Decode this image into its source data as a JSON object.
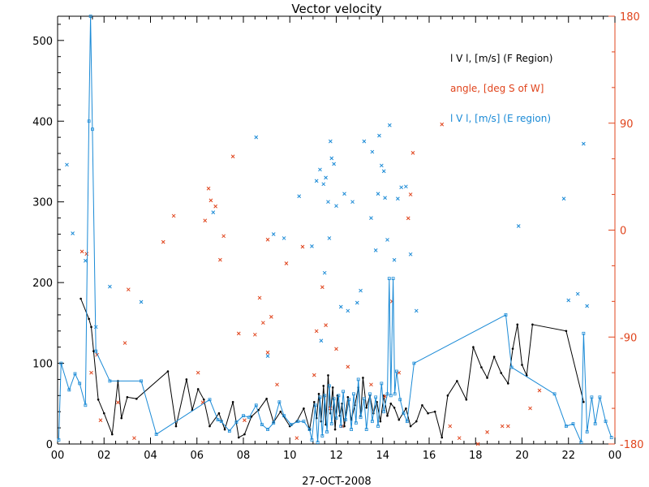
{
  "colors": {
    "axis": "#000000",
    "f_region": "#000000",
    "angle": "#e0441c",
    "e_region": "#1a8ad6",
    "right_axis": "#e0441c"
  },
  "chart_data": {
    "type": "line",
    "title": "Vector velocity",
    "xlabel": "27-OCT-2008",
    "ylabel": "",
    "xlim": [
      0,
      24
    ],
    "ylim": [
      0,
      530
    ],
    "y2lim": [
      -180,
      180
    ],
    "x_ticks": [
      "00",
      "02",
      "04",
      "06",
      "08",
      "10",
      "12",
      "14",
      "16",
      "18",
      "20",
      "22",
      "00"
    ],
    "x_tick_values": [
      0,
      2,
      4,
      6,
      8,
      10,
      12,
      14,
      16,
      18,
      20,
      22,
      24
    ],
    "y_ticks": [
      "0",
      "100",
      "200",
      "300",
      "400",
      "500"
    ],
    "y_tick_values": [
      0,
      100,
      200,
      300,
      400,
      500
    ],
    "y2_ticks": [
      "180",
      "90",
      "0",
      "-90",
      "-180"
    ],
    "y2_tick_values": [
      180,
      90,
      0,
      -90,
      -180
    ],
    "legend_position": "top-right",
    "grid": false,
    "series": [
      {
        "name": "l V l, [m/s] (F Region)",
        "color": "#000000",
        "style": "line-dot",
        "axis": "left",
        "points": [
          [
            1.0,
            180
          ],
          [
            1.35,
            155
          ],
          [
            1.45,
            145
          ],
          [
            1.55,
            115
          ],
          [
            1.75,
            55
          ],
          [
            2.0,
            38
          ],
          [
            2.35,
            12
          ],
          [
            2.6,
            78
          ],
          [
            2.75,
            32
          ],
          [
            3.0,
            58
          ],
          [
            3.4,
            56
          ],
          [
            4.75,
            90
          ],
          [
            5.1,
            22
          ],
          [
            5.55,
            80
          ],
          [
            5.8,
            42
          ],
          [
            6.05,
            68
          ],
          [
            6.3,
            55
          ],
          [
            6.55,
            22
          ],
          [
            6.95,
            38
          ],
          [
            7.2,
            18
          ],
          [
            7.55,
            52
          ],
          [
            7.8,
            8
          ],
          [
            8.05,
            12
          ],
          [
            8.35,
            34
          ],
          [
            8.65,
            42
          ],
          [
            9.0,
            56
          ],
          [
            9.3,
            27
          ],
          [
            9.6,
            40
          ],
          [
            10.0,
            22
          ],
          [
            10.3,
            28
          ],
          [
            10.6,
            44
          ],
          [
            10.85,
            18
          ],
          [
            11.05,
            52
          ],
          [
            11.15,
            32
          ],
          [
            11.25,
            62
          ],
          [
            11.35,
            28
          ],
          [
            11.45,
            72
          ],
          [
            11.55,
            24
          ],
          [
            11.65,
            85
          ],
          [
            11.75,
            38
          ],
          [
            11.85,
            70
          ],
          [
            11.95,
            18
          ],
          [
            12.05,
            60
          ],
          [
            12.15,
            35
          ],
          [
            12.25,
            50
          ],
          [
            12.35,
            22
          ],
          [
            12.5,
            58
          ],
          [
            12.65,
            30
          ],
          [
            12.8,
            48
          ],
          [
            12.95,
            70
          ],
          [
            13.05,
            35
          ],
          [
            13.15,
            82
          ],
          [
            13.3,
            45
          ],
          [
            13.45,
            60
          ],
          [
            13.6,
            38
          ],
          [
            13.75,
            52
          ],
          [
            13.9,
            28
          ],
          [
            14.05,
            60
          ],
          [
            14.2,
            35
          ],
          [
            14.35,
            50
          ],
          [
            14.5,
            45
          ],
          [
            14.7,
            30
          ],
          [
            15.0,
            44
          ],
          [
            15.2,
            22
          ],
          [
            15.45,
            28
          ],
          [
            15.7,
            48
          ],
          [
            15.95,
            38
          ],
          [
            16.25,
            40
          ],
          [
            16.55,
            8
          ],
          [
            16.8,
            60
          ],
          [
            17.2,
            78
          ],
          [
            17.6,
            55
          ],
          [
            17.9,
            120
          ],
          [
            18.25,
            95
          ],
          [
            18.5,
            82
          ],
          [
            18.8,
            108
          ],
          [
            19.1,
            88
          ],
          [
            19.4,
            75
          ],
          [
            19.6,
            118
          ],
          [
            19.8,
            148
          ],
          [
            20.0,
            98
          ],
          [
            20.2,
            85
          ],
          [
            20.45,
            148
          ],
          [
            21.9,
            140
          ],
          [
            22.65,
            52
          ]
        ]
      },
      {
        "name": "angle, [deg S of W]",
        "color": "#e0441c",
        "style": "cross",
        "axis": "right",
        "points": [
          [
            1.05,
            -18
          ],
          [
            1.25,
            -20
          ],
          [
            1.45,
            -120
          ],
          [
            1.7,
            -105
          ],
          [
            1.85,
            -160
          ],
          [
            2.6,
            -145
          ],
          [
            2.9,
            -95
          ],
          [
            3.05,
            -50
          ],
          [
            3.3,
            -175
          ],
          [
            4.55,
            -10
          ],
          [
            5.0,
            12
          ],
          [
            6.05,
            -120
          ],
          [
            6.25,
            -145
          ],
          [
            6.35,
            8
          ],
          [
            6.5,
            35
          ],
          [
            6.6,
            25
          ],
          [
            6.8,
            20
          ],
          [
            7.0,
            -25
          ],
          [
            7.15,
            -5
          ],
          [
            7.55,
            62
          ],
          [
            7.8,
            -87
          ],
          [
            8.05,
            -160
          ],
          [
            8.5,
            -88
          ],
          [
            8.7,
            -57
          ],
          [
            8.85,
            -78
          ],
          [
            9.05,
            -8
          ],
          [
            9.05,
            -103
          ],
          [
            9.2,
            -73
          ],
          [
            9.45,
            -130
          ],
          [
            9.85,
            -28
          ],
          [
            10.3,
            -175
          ],
          [
            10.55,
            -14
          ],
          [
            11.05,
            -122
          ],
          [
            11.15,
            -85
          ],
          [
            11.4,
            -48
          ],
          [
            11.55,
            -80
          ],
          [
            11.75,
            -150
          ],
          [
            12.0,
            -100
          ],
          [
            12.25,
            -165
          ],
          [
            12.5,
            -115
          ],
          [
            13.5,
            -130
          ],
          [
            14.1,
            -140
          ],
          [
            14.4,
            -60
          ],
          [
            14.7,
            -120
          ],
          [
            15.1,
            10
          ],
          [
            15.2,
            30
          ],
          [
            15.3,
            65
          ],
          [
            16.55,
            89
          ],
          [
            16.9,
            -165
          ],
          [
            17.3,
            -175
          ],
          [
            18.1,
            -180
          ],
          [
            18.5,
            -170
          ],
          [
            19.15,
            -165
          ],
          [
            19.4,
            -165
          ],
          [
            20.35,
            -150
          ],
          [
            20.75,
            -135
          ]
        ]
      },
      {
        "name": "l V l, [m/s] (E region)",
        "color": "#1a8ad6",
        "style": "line-square",
        "axis": "left",
        "points": [
          [
            0.05,
            5
          ],
          [
            0.15,
            100
          ],
          [
            0.5,
            67
          ],
          [
            0.75,
            87
          ],
          [
            0.95,
            75
          ],
          [
            1.2,
            48
          ],
          [
            1.35,
            400
          ],
          [
            1.42,
            530
          ],
          [
            1.5,
            390
          ],
          [
            1.65,
            115
          ],
          [
            2.25,
            78
          ],
          [
            3.6,
            78
          ],
          [
            4.25,
            12
          ],
          [
            6.55,
            55
          ],
          [
            6.9,
            30
          ],
          [
            7.05,
            28
          ],
          [
            7.4,
            16
          ],
          [
            7.7,
            27
          ],
          [
            8.0,
            35
          ],
          [
            8.25,
            33
          ],
          [
            8.55,
            48
          ],
          [
            8.8,
            24
          ],
          [
            9.05,
            18
          ],
          [
            9.3,
            26
          ],
          [
            9.55,
            52
          ],
          [
            9.75,
            35
          ],
          [
            10.05,
            24
          ],
          [
            10.35,
            28
          ],
          [
            10.6,
            28
          ],
          [
            10.85,
            18
          ],
          [
            10.95,
            5
          ],
          [
            11.1,
            48
          ],
          [
            11.2,
            2
          ],
          [
            11.3,
            58
          ],
          [
            11.4,
            10
          ],
          [
            11.5,
            60
          ],
          [
            11.6,
            15
          ],
          [
            11.7,
            72
          ],
          [
            11.8,
            25
          ],
          [
            11.9,
            56
          ],
          [
            12.0,
            32
          ],
          [
            12.1,
            60
          ],
          [
            12.2,
            22
          ],
          [
            12.3,
            65
          ],
          [
            12.4,
            30
          ],
          [
            12.55,
            55
          ],
          [
            12.65,
            18
          ],
          [
            12.75,
            62
          ],
          [
            12.85,
            26
          ],
          [
            12.95,
            80
          ],
          [
            13.05,
            33
          ],
          [
            13.2,
            56
          ],
          [
            13.3,
            18
          ],
          [
            13.45,
            62
          ],
          [
            13.55,
            28
          ],
          [
            13.7,
            58
          ],
          [
            13.8,
            22
          ],
          [
            13.95,
            75
          ],
          [
            14.05,
            40
          ],
          [
            14.2,
            62
          ],
          [
            14.28,
            205
          ],
          [
            14.35,
            60
          ],
          [
            14.45,
            205
          ],
          [
            14.52,
            62
          ],
          [
            14.6,
            90
          ],
          [
            14.75,
            55
          ],
          [
            14.9,
            38
          ],
          [
            15.05,
            28
          ],
          [
            15.35,
            100
          ],
          [
            19.3,
            160
          ],
          [
            19.55,
            95
          ],
          [
            21.4,
            62
          ],
          [
            21.9,
            22
          ],
          [
            22.2,
            25
          ],
          [
            22.55,
            2
          ],
          [
            22.65,
            137
          ],
          [
            22.8,
            15
          ],
          [
            23.0,
            58
          ],
          [
            23.15,
            25
          ],
          [
            23.35,
            58
          ],
          [
            23.6,
            28
          ],
          [
            23.85,
            8
          ]
        ]
      },
      {
        "name": "E region scatter",
        "color": "#1a8ad6",
        "style": "cross",
        "axis": "left",
        "points": [
          [
            0.4,
            346
          ],
          [
            0.65,
            261
          ],
          [
            1.2,
            227
          ],
          [
            1.65,
            145
          ],
          [
            2.25,
            195
          ],
          [
            3.6,
            176
          ],
          [
            6.7,
            287
          ],
          [
            8.55,
            380
          ],
          [
            9.05,
            109
          ],
          [
            9.3,
            260
          ],
          [
            9.75,
            255
          ],
          [
            10.4,
            307
          ],
          [
            10.95,
            245
          ],
          [
            11.15,
            326
          ],
          [
            11.3,
            340
          ],
          [
            11.45,
            322
          ],
          [
            11.55,
            330
          ],
          [
            11.65,
            300
          ],
          [
            11.75,
            375
          ],
          [
            11.8,
            354
          ],
          [
            11.9,
            347
          ],
          [
            12.0,
            295
          ],
          [
            11.35,
            128
          ],
          [
            11.5,
            212
          ],
          [
            11.7,
            255
          ],
          [
            12.2,
            170
          ],
          [
            12.35,
            310
          ],
          [
            12.5,
            165
          ],
          [
            12.7,
            300
          ],
          [
            12.9,
            175
          ],
          [
            13.05,
            190
          ],
          [
            13.2,
            375
          ],
          [
            13.5,
            280
          ],
          [
            13.55,
            362
          ],
          [
            13.7,
            240
          ],
          [
            13.8,
            310
          ],
          [
            13.85,
            382
          ],
          [
            13.95,
            345
          ],
          [
            14.05,
            338
          ],
          [
            14.1,
            305
          ],
          [
            14.2,
            253
          ],
          [
            14.3,
            395
          ],
          [
            14.5,
            228
          ],
          [
            14.65,
            304
          ],
          [
            14.8,
            318
          ],
          [
            15.0,
            319
          ],
          [
            15.2,
            235
          ],
          [
            15.45,
            165
          ],
          [
            19.85,
            270
          ],
          [
            21.8,
            304
          ],
          [
            22.0,
            178
          ],
          [
            22.4,
            186
          ],
          [
            22.65,
            372
          ],
          [
            22.8,
            171
          ]
        ]
      }
    ]
  }
}
